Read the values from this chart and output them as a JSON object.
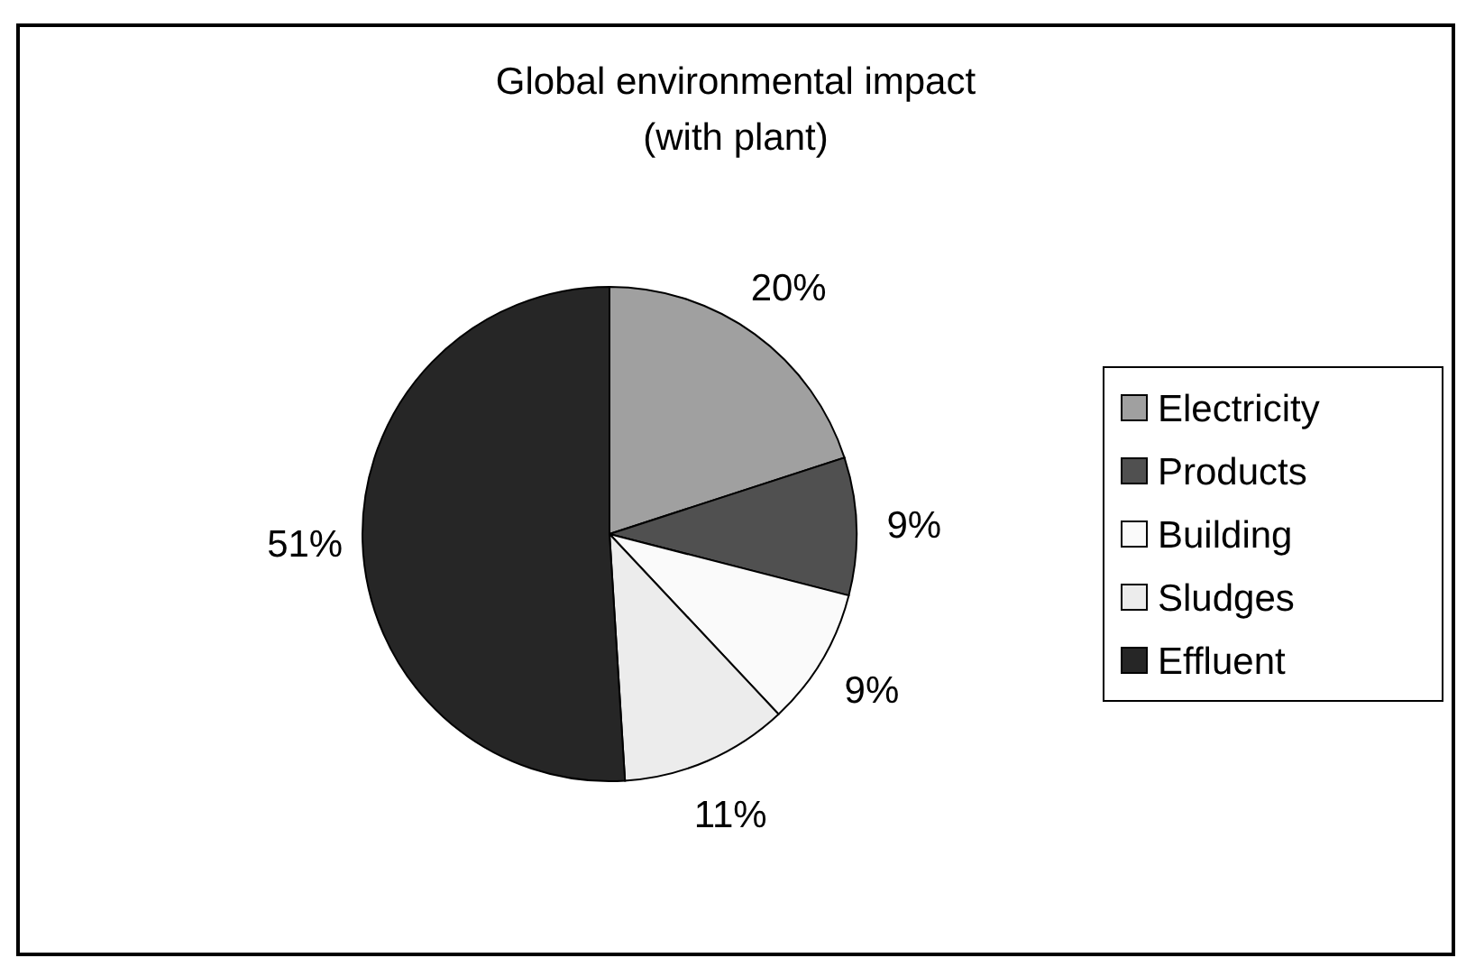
{
  "chart_data": {
    "type": "pie",
    "title": "Global environmental impact",
    "subtitle": "(with plant)",
    "categories": [
      "Electricity",
      "Products",
      "Building",
      "Sludges",
      "Effluent"
    ],
    "values": [
      20,
      9,
      9,
      11,
      51
    ],
    "colors": [
      "#a0a0a0",
      "#505050",
      "#fafafa",
      "#ececec",
      "#262626"
    ],
    "value_labels": [
      "20%",
      "9%",
      "9%",
      "11%",
      "51%"
    ],
    "legend": "right"
  }
}
